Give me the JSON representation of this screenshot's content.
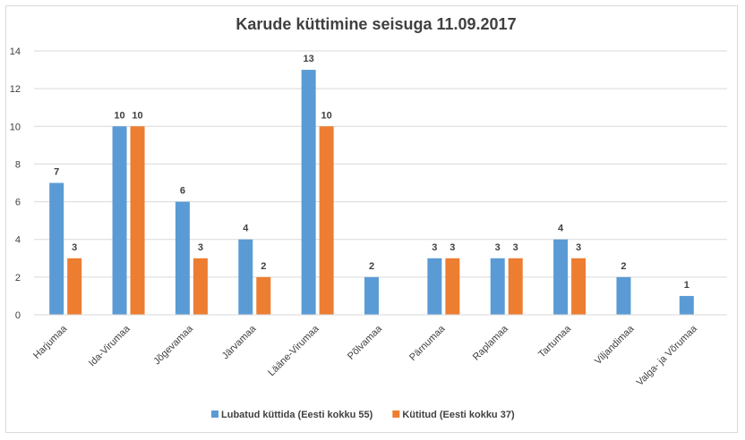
{
  "chart_data": {
    "type": "bar",
    "title": "Karude küttimine seisuga 11.09.2017",
    "xlabel": "",
    "ylabel": "",
    "ylim": [
      0,
      14
    ],
    "yticks": [
      0,
      2,
      4,
      6,
      8,
      10,
      12,
      14
    ],
    "grid": true,
    "legend_position": "bottom",
    "categories": [
      "Harjumaa",
      "Ida-Virumaa",
      "Jõgevamaa",
      "Järvamaa",
      "Lääne-Virumaa",
      "Põlvamaa",
      "Pärnumaa",
      "Raplamaa",
      "Tartumaa",
      "Viljandimaa",
      "Valga- ja Võrumaa"
    ],
    "series": [
      {
        "name": "Lubatud küttida (Eesti kokku 55)",
        "color": "#5b9bd5",
        "values": [
          7,
          10,
          6,
          4,
          13,
          2,
          3,
          3,
          4,
          2,
          1
        ]
      },
      {
        "name": "Kütitud (Eesti kokku 37)",
        "color": "#ed7d31",
        "values": [
          3,
          10,
          3,
          2,
          10,
          null,
          3,
          3,
          3,
          null,
          null
        ]
      }
    ]
  }
}
